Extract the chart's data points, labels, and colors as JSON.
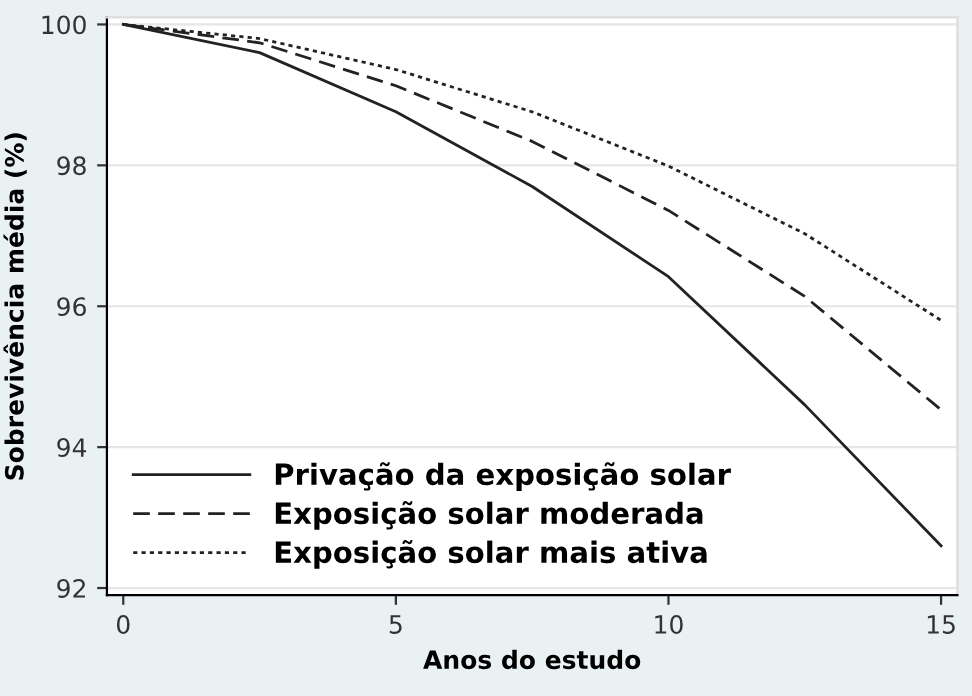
{
  "chart_data": {
    "type": "line",
    "xlabel": "Anos do estudo",
    "ylabel": "Sobrevivência média (%)",
    "x": [
      0,
      2.5,
      5,
      7.5,
      10,
      12.5,
      15
    ],
    "series": [
      {
        "name": "Privação da exposição solar",
        "color": "#222222",
        "line_style": "solid",
        "values": [
          100,
          99.6,
          98.76,
          97.7,
          96.42,
          94.6,
          92.6
        ]
      },
      {
        "name": "Exposição solar moderada",
        "color": "#222222",
        "line_style": "dashed",
        "values": [
          100,
          99.74,
          99.13,
          98.34,
          97.36,
          96.14,
          94.53
        ]
      },
      {
        "name": "Exposição solar mais ativa",
        "color": "#222222",
        "line_style": "dotted",
        "values": [
          100,
          99.8,
          99.36,
          98.76,
          97.99,
          97.03,
          95.8
        ]
      }
    ],
    "xlim": [
      -0.3,
      15.3
    ],
    "ylim": [
      91.9,
      100.1
    ],
    "xticks": [
      0,
      5,
      10,
      15
    ],
    "yticks": [
      92,
      94,
      96,
      98,
      100
    ],
    "grid": "y",
    "legend": "bottom left",
    "marker": "none"
  }
}
